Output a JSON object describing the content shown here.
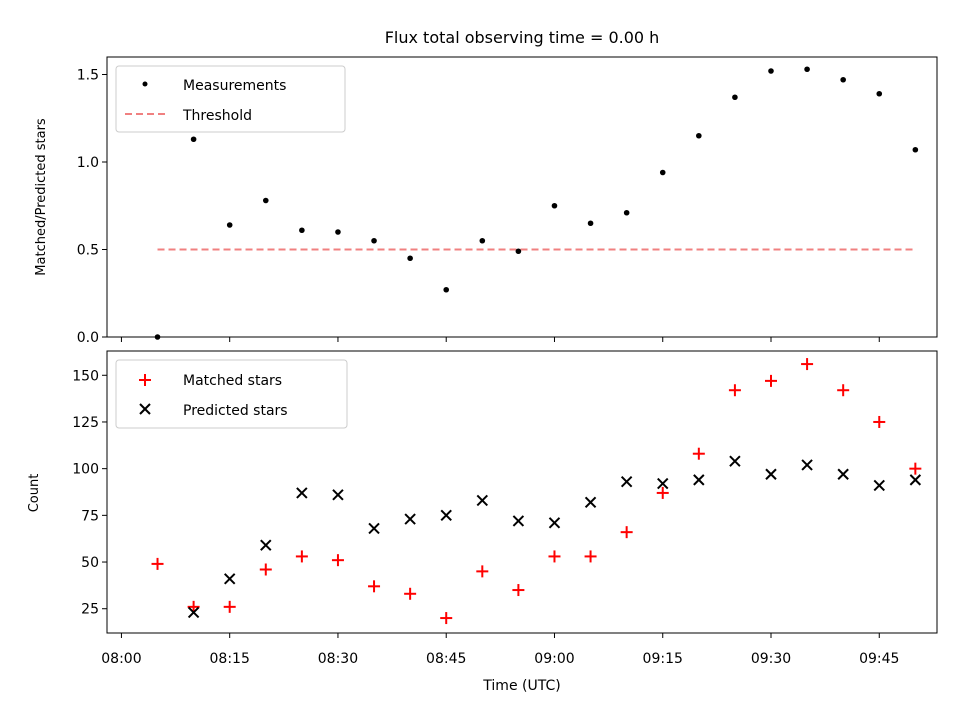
{
  "chart_data": [
    {
      "type": "scatter",
      "title": "Flux total observing time = 0.00 h",
      "ylabel": "Matched/Predicted stars",
      "xlim": [
        "07:58",
        "09:53"
      ],
      "ylim": [
        0,
        1.6
      ],
      "yticks": [
        "0.0",
        "0.5",
        "1.0",
        "1.5"
      ],
      "legend_position": "upper left",
      "series": [
        {
          "name": "Measurements",
          "marker": "dot",
          "color": "#000000",
          "x": [
            "08:05",
            "08:10",
            "08:15",
            "08:20",
            "08:25",
            "08:30",
            "08:35",
            "08:40",
            "08:45",
            "08:50",
            "08:55",
            "09:00",
            "09:05",
            "09:10",
            "09:15",
            "09:20",
            "09:25",
            "09:30",
            "09:35",
            "09:40",
            "09:45",
            "09:50"
          ],
          "y": [
            0.0,
            1.13,
            0.64,
            0.78,
            0.61,
            0.6,
            0.55,
            0.45,
            0.27,
            0.55,
            0.49,
            0.75,
            0.65,
            0.71,
            0.94,
            1.15,
            1.37,
            1.52,
            1.53,
            1.47,
            1.39,
            1.07
          ]
        },
        {
          "name": "Threshold",
          "style": "dashed",
          "color": "#f08080",
          "x": [
            "08:05",
            "09:50"
          ],
          "y": [
            0.5,
            0.5
          ]
        }
      ]
    },
    {
      "type": "scatter",
      "xlabel": "Time (UTC)",
      "ylabel": "Count",
      "xlim": [
        "07:58",
        "09:53"
      ],
      "ylim": [
        12,
        163
      ],
      "xticks": [
        "08:00",
        "08:15",
        "08:30",
        "08:45",
        "09:00",
        "09:15",
        "09:30",
        "09:45"
      ],
      "yticks": [
        "25",
        "50",
        "75",
        "100",
        "125",
        "150"
      ],
      "legend_position": "upper left",
      "series": [
        {
          "name": "Matched stars",
          "marker": "plus",
          "color": "#ff0000",
          "x": [
            "08:05",
            "08:10",
            "08:15",
            "08:20",
            "08:25",
            "08:30",
            "08:35",
            "08:40",
            "08:45",
            "08:50",
            "08:55",
            "09:00",
            "09:05",
            "09:10",
            "09:15",
            "09:20",
            "09:25",
            "09:30",
            "09:35",
            "09:40",
            "09:45",
            "09:50"
          ],
          "y": [
            49,
            26,
            26,
            46,
            53,
            51,
            37,
            33,
            20,
            45,
            35,
            53,
            53,
            66,
            87,
            108,
            142,
            147,
            156,
            142,
            125,
            100
          ]
        },
        {
          "name": "Predicted stars",
          "marker": "x",
          "color": "#000000",
          "x": [
            "08:10",
            "08:15",
            "08:20",
            "08:25",
            "08:30",
            "08:35",
            "08:40",
            "08:45",
            "08:50",
            "08:55",
            "09:00",
            "09:05",
            "09:10",
            "09:15",
            "09:20",
            "09:25",
            "09:30",
            "09:35",
            "09:40",
            "09:45",
            "09:50"
          ],
          "y": [
            23,
            41,
            59,
            87,
            86,
            68,
            73,
            75,
            83,
            72,
            71,
            82,
            93,
            92,
            94,
            104,
            97,
            102,
            97,
            91,
            94
          ]
        }
      ]
    }
  ]
}
